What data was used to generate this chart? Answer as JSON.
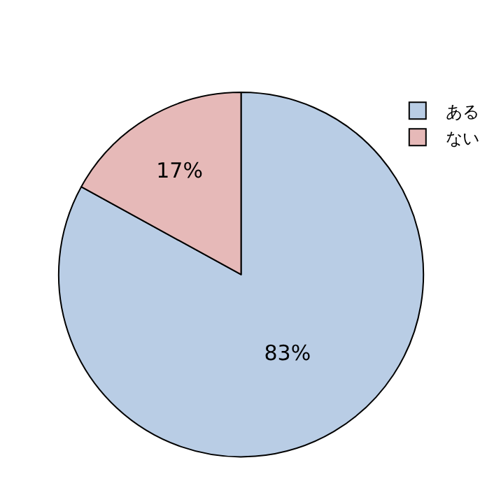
{
  "chart_data": {
    "type": "pie",
    "categories": [
      "ある",
      "ない"
    ],
    "values": [
      83,
      17
    ],
    "colors": [
      "#b9cde5",
      "#e6b9b8"
    ],
    "value_labels": [
      "83%",
      "17%"
    ],
    "legend": "top right"
  }
}
